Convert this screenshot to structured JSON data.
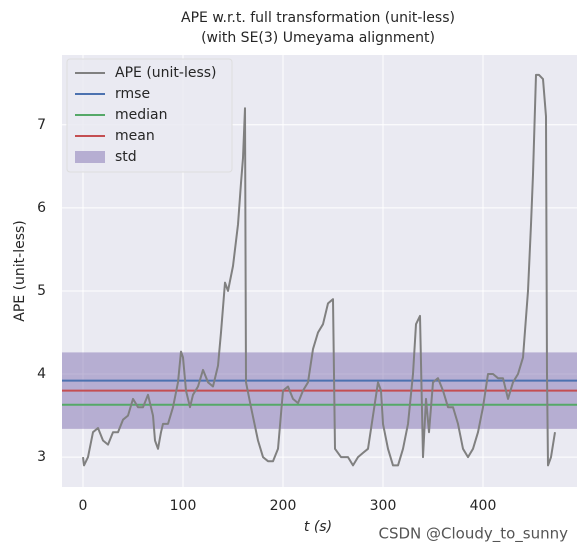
{
  "chart_data": {
    "type": "line",
    "title": "APE w.r.t. full transformation (unit-less)",
    "subtitle": "(with SE(3) Umeyama alignment)",
    "x_label": "t (s)",
    "y_label": "APE (unit-less)",
    "watermark": "CSDN @Cloudy_to_sunny",
    "xlim": [
      -21,
      494
    ],
    "ylim": [
      2.64,
      7.84
    ],
    "xticks": [
      0,
      100,
      200,
      300,
      400
    ],
    "yticks": [
      3,
      4,
      5,
      6,
      7
    ],
    "grid": true,
    "legend": "upper left",
    "series": [
      {
        "name": "APE (unit-less)",
        "color": "#808080",
        "x": [
          0,
          1,
          5,
          10,
          15,
          20,
          25,
          30,
          35,
          40,
          45,
          50,
          55,
          60,
          65,
          70,
          72,
          75,
          78,
          80,
          85,
          90,
          95,
          98,
          100,
          103,
          107,
          110,
          115,
          120,
          125,
          130,
          135,
          138,
          142,
          145,
          150,
          155,
          158,
          160,
          162,
          163,
          168,
          175,
          180,
          185,
          190,
          195,
          200,
          205,
          210,
          215,
          220,
          225,
          230,
          235,
          240,
          245,
          250,
          252,
          258,
          265,
          270,
          275,
          280,
          285,
          290,
          295,
          298,
          300,
          305,
          310,
          315,
          320,
          325,
          330,
          333,
          337,
          340,
          343,
          346,
          350,
          355,
          360,
          365,
          370,
          375,
          380,
          385,
          390,
          395,
          400,
          405,
          410,
          415,
          420,
          425,
          430,
          435,
          440,
          445,
          448,
          450,
          453,
          456,
          460,
          463,
          464,
          465,
          468,
          472
        ],
        "values": [
          3.0,
          2.9,
          3.0,
          3.3,
          3.35,
          3.2,
          3.15,
          3.3,
          3.3,
          3.45,
          3.5,
          3.7,
          3.6,
          3.6,
          3.75,
          3.5,
          3.2,
          3.1,
          3.3,
          3.4,
          3.4,
          3.6,
          3.9,
          4.27,
          4.2,
          3.8,
          3.6,
          3.75,
          3.85,
          4.05,
          3.9,
          3.85,
          4.1,
          4.5,
          5.1,
          5.0,
          5.3,
          5.8,
          6.3,
          6.6,
          7.2,
          3.9,
          3.6,
          3.2,
          3.0,
          2.95,
          2.95,
          3.1,
          3.8,
          3.85,
          3.7,
          3.65,
          3.8,
          3.9,
          4.3,
          4.5,
          4.6,
          4.85,
          4.9,
          3.1,
          3.0,
          3.0,
          2.9,
          3.0,
          3.05,
          3.1,
          3.5,
          3.9,
          3.8,
          3.4,
          3.1,
          2.9,
          2.9,
          3.1,
          3.4,
          4.0,
          4.6,
          4.7,
          3.0,
          3.7,
          3.3,
          3.9,
          3.95,
          3.8,
          3.6,
          3.6,
          3.4,
          3.1,
          3.0,
          3.1,
          3.3,
          3.6,
          4.0,
          4.0,
          3.95,
          3.95,
          3.7,
          3.9,
          4.0,
          4.2,
          5.0,
          5.8,
          6.4,
          7.6,
          7.6,
          7.55,
          7.1,
          4.0,
          2.9,
          3.0,
          3.3
        ]
      }
    ],
    "stats": [
      {
        "name": "rmse",
        "color": "#4c72b0",
        "value": 3.92
      },
      {
        "name": "median",
        "color": "#55a868",
        "value": 3.63
      },
      {
        "name": "mean",
        "color": "#c44e52",
        "value": 3.8
      },
      {
        "name": "std",
        "color": "#8172b2",
        "value": 0.46
      }
    ]
  }
}
